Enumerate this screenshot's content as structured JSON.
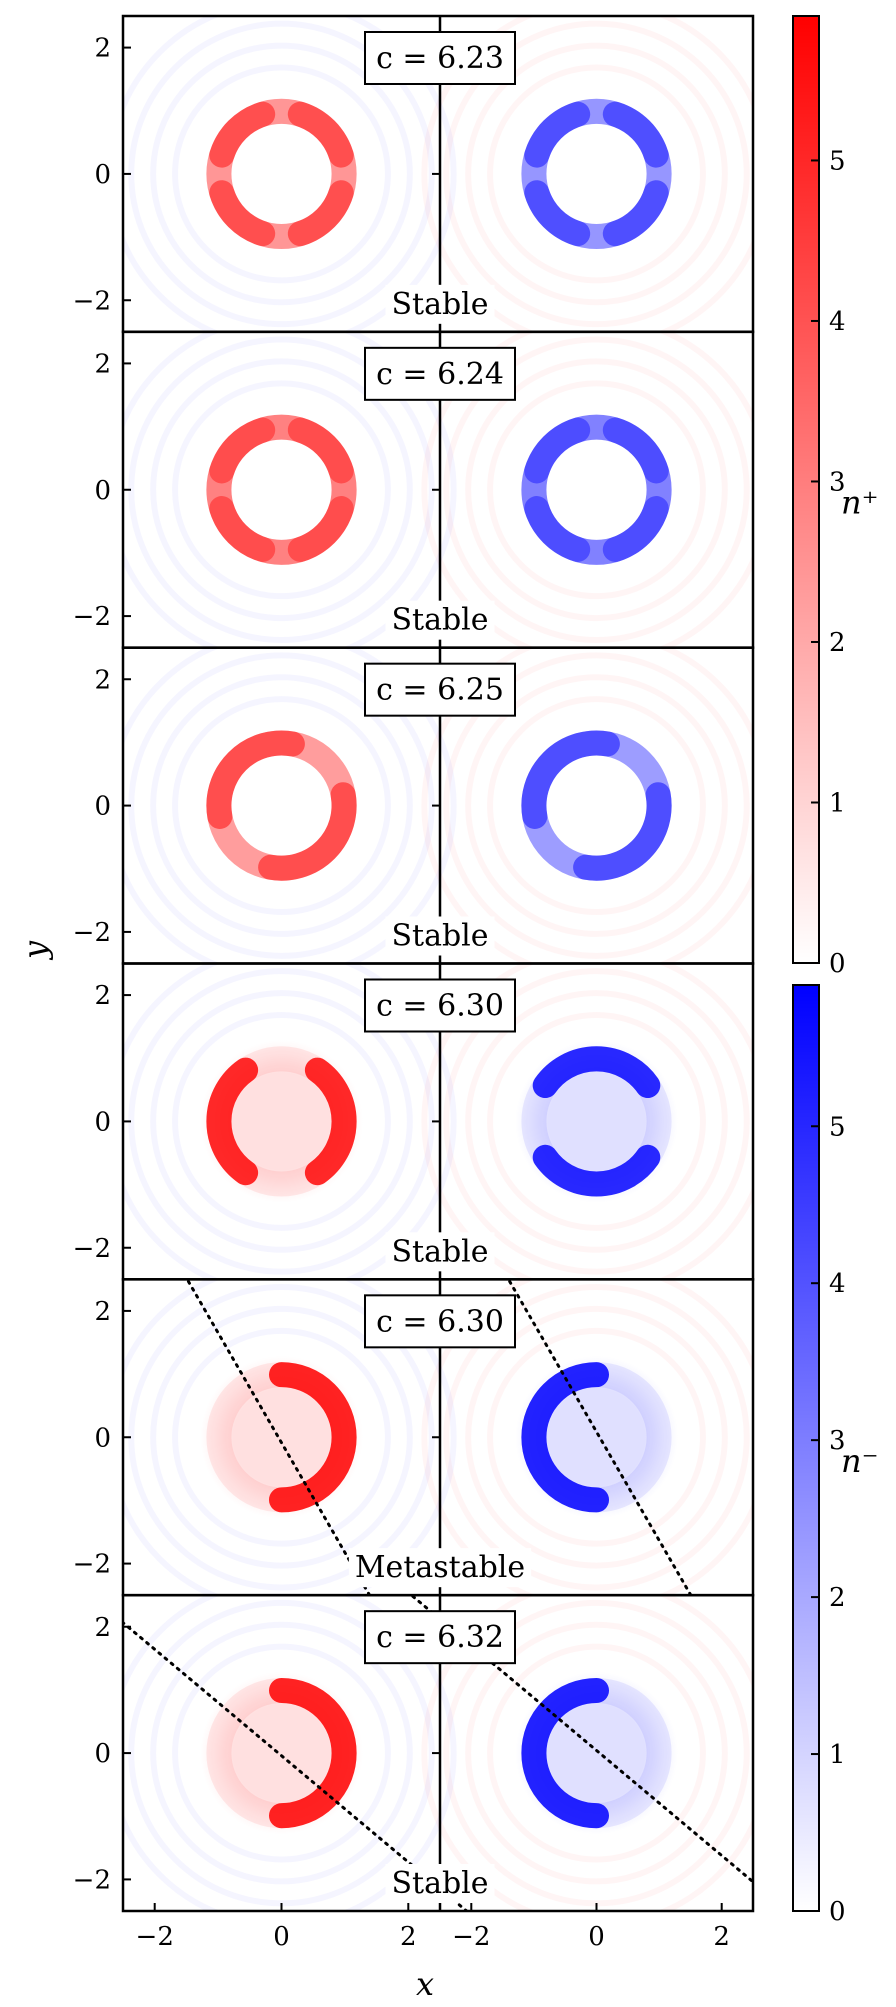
{
  "chart_data": {
    "type": "heatmap",
    "panels": [
      {
        "label": "c = 6.23",
        "status": "Stable",
        "dense_theta_deg": [
          45,
          135,
          225,
          315
        ],
        "contrast": 0.25,
        "metastable": false,
        "dotted_tilt_deg": null
      },
      {
        "label": "c = 6.24",
        "status": "Stable",
        "dense_theta_deg": [
          45,
          135,
          225,
          315
        ],
        "contrast": 0.1,
        "metastable": false,
        "dotted_tilt_deg": null
      },
      {
        "label": "c = 6.25",
        "status": "Stable",
        "dense_theta_deg": [
          135,
          315
        ],
        "contrast": 0.3,
        "metastable": false,
        "dotted_tilt_deg": null
      },
      {
        "label": "c = 6.30",
        "status": "Stable",
        "dense_theta_deg": [
          0,
          180
        ],
        "contrast": 0.95,
        "metastable": false,
        "dotted_tilt_deg": null
      },
      {
        "label": "c = 6.30",
        "status": "Metastable",
        "dense_theta_deg": [
          0
        ],
        "contrast": 1.0,
        "metastable": true,
        "dotted_tilt_deg": 60
      },
      {
        "label": "c = 6.32",
        "status": "Stable",
        "dense_theta_deg": [
          0
        ],
        "contrast": 1.0,
        "metastable": false,
        "dotted_tilt_deg": 40
      }
    ],
    "xlabel": "x",
    "ylabel": "y",
    "xlim": [
      -2.5,
      2.5
    ],
    "ylim": [
      -2.5,
      2.5
    ],
    "xticks": [
      "−2",
      "0",
      "2",
      "−2",
      "0",
      "2"
    ],
    "yticks": [
      "−2",
      "0",
      "2"
    ],
    "ring_radius": 1.0,
    "colorbars": [
      {
        "label": "n⁺",
        "color": "#ff0000",
        "ticks": [
          "0",
          "1",
          "2",
          "3",
          "4",
          "5"
        ],
        "range": [
          0,
          5.9
        ]
      },
      {
        "label": "n⁻",
        "color": "#0000ff",
        "ticks": [
          "0",
          "1",
          "2",
          "3",
          "4",
          "5"
        ],
        "range": [
          0,
          5.9
        ]
      }
    ],
    "grid": false
  }
}
